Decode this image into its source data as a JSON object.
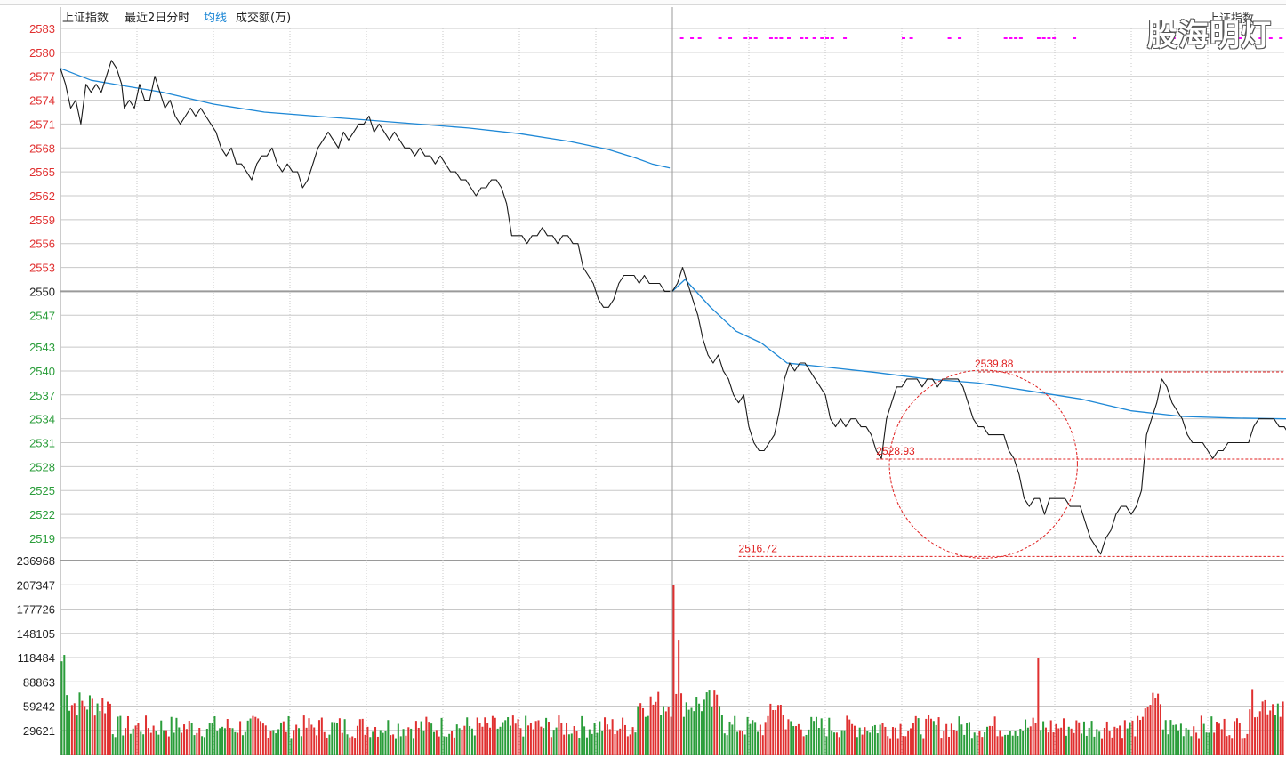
{
  "header": {
    "index_name": "上证指数",
    "period": "最近2日分时",
    "avg_line_label": "均线",
    "volume_label": "成交额(万)",
    "top_right_label": "上证指数",
    "watermark": "股海明灯"
  },
  "colors": {
    "price_line": "#1a1a1a",
    "avg_line": "#1e88d6",
    "up_bar": "#e03030",
    "down_bar": "#2a9d3a",
    "annotation": "#e02020",
    "magenta_markers": "#ff00ff",
    "grid": "#c8c8c8",
    "axis_up_text": "#e03030",
    "axis_down_text": "#2a9d3a"
  },
  "chart_data": {
    "type": "line",
    "price_axis": {
      "ticks": [
        2583,
        2580,
        2577,
        2574,
        2571,
        2568,
        2565,
        2562,
        2559,
        2556,
        2553,
        2550,
        2547,
        2543,
        2540,
        2537,
        2534,
        2531,
        2528,
        2525,
        2522,
        2519
      ],
      "reference": 2550,
      "ylim": [
        2516.2,
        2583.0
      ]
    },
    "volume_axis": {
      "ticks": [
        236968,
        207347,
        177726,
        148105,
        118484,
        88863,
        59242,
        29621
      ],
      "ylim": [
        0,
        236968
      ]
    },
    "days": 2,
    "minutes_per_day": 240,
    "price_day1": [
      [
        0,
        2578
      ],
      [
        2,
        2576
      ],
      [
        4,
        2573
      ],
      [
        6,
        2574
      ],
      [
        8,
        2571
      ],
      [
        10,
        2576
      ],
      [
        12,
        2575
      ],
      [
        14,
        2576
      ],
      [
        16,
        2575
      ],
      [
        18,
        2577
      ],
      [
        20,
        2579
      ],
      [
        22,
        2578
      ],
      [
        24,
        2576
      ],
      [
        25,
        2573
      ],
      [
        27,
        2574
      ],
      [
        29,
        2573
      ],
      [
        31,
        2576
      ],
      [
        33,
        2574
      ],
      [
        35,
        2574
      ],
      [
        37,
        2577
      ],
      [
        39,
        2575
      ],
      [
        41,
        2573
      ],
      [
        43,
        2574
      ],
      [
        45,
        2572
      ],
      [
        47,
        2571
      ],
      [
        49,
        2572
      ],
      [
        51,
        2573
      ],
      [
        53,
        2572
      ],
      [
        55,
        2573
      ],
      [
        57,
        2572
      ],
      [
        59,
        2571
      ],
      [
        61,
        2570
      ],
      [
        63,
        2568
      ],
      [
        65,
        2567
      ],
      [
        67,
        2568
      ],
      [
        69,
        2566
      ],
      [
        71,
        2566
      ],
      [
        73,
        2565
      ],
      [
        75,
        2564
      ],
      [
        77,
        2566
      ],
      [
        79,
        2567
      ],
      [
        81,
        2567
      ],
      [
        83,
        2568
      ],
      [
        85,
        2566
      ],
      [
        87,
        2565
      ],
      [
        89,
        2566
      ],
      [
        91,
        2565
      ],
      [
        93,
        2565
      ],
      [
        95,
        2563
      ],
      [
        97,
        2564
      ],
      [
        99,
        2566
      ],
      [
        101,
        2568
      ],
      [
        103,
        2569
      ],
      [
        105,
        2570
      ],
      [
        107,
        2569
      ],
      [
        109,
        2568
      ],
      [
        111,
        2570
      ],
      [
        113,
        2569
      ],
      [
        115,
        2570
      ],
      [
        117,
        2571
      ],
      [
        119,
        2571
      ],
      [
        121,
        2572
      ],
      [
        123,
        2570
      ],
      [
        125,
        2571
      ],
      [
        127,
        2570
      ],
      [
        129,
        2569
      ],
      [
        131,
        2570
      ],
      [
        133,
        2569
      ],
      [
        135,
        2568
      ],
      [
        137,
        2568
      ],
      [
        139,
        2567
      ],
      [
        141,
        2568
      ],
      [
        143,
        2567
      ],
      [
        145,
        2567
      ],
      [
        147,
        2566
      ],
      [
        149,
        2567
      ],
      [
        151,
        2566
      ],
      [
        153,
        2565
      ],
      [
        155,
        2565
      ],
      [
        157,
        2564
      ],
      [
        159,
        2564
      ],
      [
        161,
        2563
      ],
      [
        163,
        2562
      ],
      [
        165,
        2563
      ],
      [
        167,
        2563
      ],
      [
        169,
        2564
      ],
      [
        171,
        2564
      ],
      [
        173,
        2563
      ],
      [
        175,
        2561
      ],
      [
        177,
        2557
      ],
      [
        179,
        2557
      ],
      [
        181,
        2557
      ],
      [
        183,
        2556
      ],
      [
        185,
        2557
      ],
      [
        187,
        2557
      ],
      [
        189,
        2558
      ],
      [
        191,
        2557
      ],
      [
        193,
        2557
      ],
      [
        195,
        2556
      ],
      [
        197,
        2557
      ],
      [
        199,
        2557
      ],
      [
        201,
        2556
      ],
      [
        203,
        2556
      ],
      [
        205,
        2553
      ],
      [
        207,
        2552
      ],
      [
        209,
        2551
      ],
      [
        211,
        2549
      ],
      [
        213,
        2548
      ],
      [
        215,
        2548
      ],
      [
        217,
        2549
      ],
      [
        219,
        2551
      ],
      [
        221,
        2552
      ],
      [
        223,
        2552
      ],
      [
        225,
        2552
      ],
      [
        227,
        2551
      ],
      [
        229,
        2552
      ],
      [
        231,
        2551
      ],
      [
        233,
        2551
      ],
      [
        235,
        2551
      ],
      [
        237,
        2550
      ],
      [
        239,
        2550
      ]
    ],
    "price_day2": [
      [
        240,
        2550
      ],
      [
        242,
        2551
      ],
      [
        244,
        2553
      ],
      [
        246,
        2551
      ],
      [
        248,
        2549
      ],
      [
        250,
        2547
      ],
      [
        252,
        2544
      ],
      [
        254,
        2542
      ],
      [
        256,
        2541
      ],
      [
        258,
        2542
      ],
      [
        260,
        2540
      ],
      [
        262,
        2539
      ],
      [
        264,
        2537
      ],
      [
        266,
        2536
      ],
      [
        268,
        2537
      ],
      [
        270,
        2533
      ],
      [
        272,
        2531
      ],
      [
        274,
        2530
      ],
      [
        276,
        2530
      ],
      [
        278,
        2531
      ],
      [
        280,
        2532
      ],
      [
        282,
        2535
      ],
      [
        284,
        2539
      ],
      [
        286,
        2541
      ],
      [
        288,
        2540
      ],
      [
        290,
        2541
      ],
      [
        292,
        2541
      ],
      [
        294,
        2540
      ],
      [
        296,
        2539
      ],
      [
        298,
        2538
      ],
      [
        300,
        2537
      ],
      [
        302,
        2534
      ],
      [
        304,
        2533
      ],
      [
        306,
        2534
      ],
      [
        308,
        2533
      ],
      [
        310,
        2534
      ],
      [
        312,
        2534
      ],
      [
        314,
        2533
      ],
      [
        316,
        2533
      ],
      [
        318,
        2532
      ],
      [
        320,
        2530
      ],
      [
        322,
        2529
      ],
      [
        324,
        2534
      ],
      [
        326,
        2536
      ],
      [
        328,
        2538
      ],
      [
        330,
        2538
      ],
      [
        332,
        2539
      ],
      [
        334,
        2539
      ],
      [
        336,
        2539
      ],
      [
        338,
        2538
      ],
      [
        340,
        2539
      ],
      [
        342,
        2539
      ],
      [
        344,
        2538
      ],
      [
        346,
        2539
      ],
      [
        348,
        2539
      ],
      [
        350,
        2539
      ],
      [
        352,
        2539
      ],
      [
        354,
        2538
      ],
      [
        356,
        2536
      ],
      [
        358,
        2534
      ],
      [
        360,
        2533
      ],
      [
        362,
        2533
      ],
      [
        364,
        2532
      ],
      [
        366,
        2532
      ],
      [
        368,
        2532
      ],
      [
        370,
        2532
      ],
      [
        372,
        2530
      ],
      [
        374,
        2529
      ],
      [
        376,
        2527
      ],
      [
        378,
        2524
      ],
      [
        380,
        2523
      ],
      [
        382,
        2524
      ],
      [
        384,
        2524
      ],
      [
        386,
        2522
      ],
      [
        388,
        2524
      ],
      [
        390,
        2524
      ],
      [
        392,
        2524
      ],
      [
        394,
        2524
      ],
      [
        396,
        2523
      ],
      [
        398,
        2523
      ],
      [
        400,
        2523
      ],
      [
        402,
        2521
      ],
      [
        404,
        2519
      ],
      [
        406,
        2518
      ],
      [
        408,
        2517
      ],
      [
        410,
        2519
      ],
      [
        412,
        2520
      ],
      [
        414,
        2522
      ],
      [
        416,
        2523
      ],
      [
        418,
        2523
      ],
      [
        420,
        2522
      ],
      [
        422,
        2523
      ],
      [
        424,
        2525
      ],
      [
        426,
        2532
      ],
      [
        428,
        2534
      ],
      [
        430,
        2536
      ],
      [
        432,
        2539
      ],
      [
        434,
        2538
      ],
      [
        436,
        2536
      ],
      [
        438,
        2535
      ],
      [
        440,
        2534
      ],
      [
        442,
        2532
      ],
      [
        444,
        2531
      ],
      [
        446,
        2531
      ],
      [
        448,
        2531
      ],
      [
        450,
        2530
      ],
      [
        452,
        2529
      ],
      [
        454,
        2530
      ],
      [
        456,
        2530
      ],
      [
        458,
        2531
      ],
      [
        460,
        2531
      ],
      [
        462,
        2531
      ],
      [
        464,
        2531
      ],
      [
        466,
        2531
      ],
      [
        468,
        2533
      ],
      [
        470,
        2534
      ],
      [
        472,
        2534
      ],
      [
        474,
        2534
      ],
      [
        476,
        2534
      ],
      [
        478,
        2533
      ],
      [
        480,
        2533
      ],
      [
        482,
        2532
      ],
      [
        484,
        2531
      ],
      [
        486,
        2533
      ],
      [
        488,
        2534
      ],
      [
        490,
        2534
      ],
      [
        492,
        2534
      ],
      [
        494,
        2535
      ],
      [
        496,
        2535
      ]
    ],
    "avg_day1": [
      [
        0,
        2578
      ],
      [
        12,
        2576.5
      ],
      [
        25,
        2575.8
      ],
      [
        40,
        2575
      ],
      [
        60,
        2573.5
      ],
      [
        80,
        2572.5
      ],
      [
        100,
        2572
      ],
      [
        120,
        2571.5
      ],
      [
        140,
        2571
      ],
      [
        160,
        2570.5
      ],
      [
        180,
        2569.8
      ],
      [
        200,
        2568.8
      ],
      [
        215,
        2567.8
      ],
      [
        225,
        2566.8
      ],
      [
        232,
        2566
      ],
      [
        239,
        2565.5
      ]
    ],
    "avg_day2": [
      [
        240,
        2550
      ],
      [
        245,
        2551.5
      ],
      [
        255,
        2548
      ],
      [
        265,
        2545
      ],
      [
        275,
        2543.5
      ],
      [
        285,
        2541
      ],
      [
        300,
        2540.5
      ],
      [
        320,
        2539.8
      ],
      [
        340,
        2539
      ],
      [
        360,
        2538.5
      ],
      [
        380,
        2537.5
      ],
      [
        400,
        2536.5
      ],
      [
        420,
        2535
      ],
      [
        440,
        2534.3
      ],
      [
        460,
        2534.1
      ],
      [
        480,
        2534
      ],
      [
        496,
        2534
      ]
    ],
    "annotations": [
      {
        "label": "2539.88",
        "value": 2539.88
      },
      {
        "label": "2528.93",
        "value": 2528.93
      },
      {
        "label": "2516.72",
        "value": 2516.72
      }
    ],
    "magenta_marker_minutes": [
      243,
      247,
      250,
      258,
      262,
      268,
      270,
      272,
      278,
      280,
      282,
      285,
      290,
      292,
      295,
      298,
      300,
      302,
      307,
      330,
      333,
      348,
      352,
      370,
      372,
      374,
      376,
      383,
      385,
      387,
      389,
      397,
      436,
      444,
      451,
      455,
      458,
      462,
      466,
      470,
      474,
      478,
      484,
      487,
      490,
      493,
      496
    ],
    "volume_peak_day2_open": 207347,
    "volume_peak_day2_mid": 118484
  }
}
